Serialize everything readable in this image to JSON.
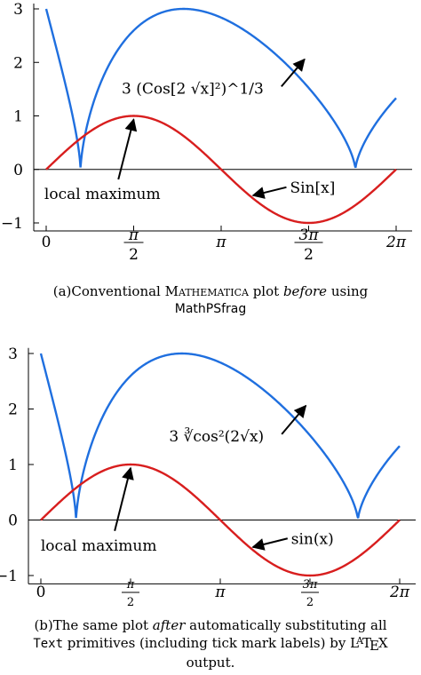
{
  "chart_data": [
    {
      "type": "line",
      "panel": "a",
      "x_range": [
        -0.3,
        6.55
      ],
      "ylim": [
        -1.15,
        3.1
      ],
      "grid": false,
      "x_tick_labels": [
        {
          "x": 0,
          "label": "0"
        },
        {
          "x": 1.5708,
          "label": "π/2"
        },
        {
          "x": 3.1416,
          "label": "π"
        },
        {
          "x": 4.7124,
          "label": "3π/2"
        },
        {
          "x": 6.2832,
          "label": "2π"
        }
      ],
      "y_tick_labels": [
        {
          "y": 3,
          "label": "3"
        },
        {
          "y": 2,
          "label": "2"
        },
        {
          "y": 1,
          "label": "1"
        },
        {
          "y": 0,
          "label": "0"
        },
        {
          "y": -1,
          "label": "−1"
        }
      ],
      "series": [
        {
          "name": "3 (Cos[2 √x]²)^1/3",
          "color": "#1f6fdf",
          "x": [
            0.0,
            0.2,
            0.4,
            0.6,
            0.62,
            0.8,
            1.0,
            1.5,
            2.0,
            2.5,
            2.47,
            3.0,
            3.5,
            4.0,
            4.5,
            5.0,
            5.4,
            5.55,
            5.7,
            6.0,
            6.28
          ],
          "y": [
            3.0,
            2.24,
            1.48,
            0.45,
            0.1,
            1.15,
            1.65,
            2.33,
            2.74,
            2.95,
            2.96,
            2.94,
            2.77,
            2.44,
            1.91,
            1.1,
            0.3,
            0.05,
            0.55,
            1.0,
            1.3
          ]
        },
        {
          "name": "Sin[x]",
          "color": "#d81e1e",
          "x": [
            0.0,
            0.5,
            1.0,
            1.5708,
            2.0,
            2.5,
            3.1416,
            3.5,
            4.0,
            4.7124,
            5.0,
            5.5,
            6.2832
          ],
          "y": [
            0.0,
            0.479,
            0.841,
            1.0,
            0.909,
            0.598,
            0.0,
            -0.351,
            -0.757,
            -1.0,
            -0.959,
            -0.706,
            0.0
          ]
        }
      ],
      "annotations": [
        {
          "text": "local maximum",
          "from": [
            1.2,
            -0.42
          ],
          "to": [
            1.5708,
            1.0
          ]
        },
        {
          "text": "Sin[x]",
          "from": [
            4.6,
            -0.3
          ],
          "to": [
            3.65,
            -0.52
          ]
        },
        {
          "text": "3 (Cos[2 √x]²)^1/3",
          "from": [
            4.0,
            1.45
          ],
          "to": [
            4.67,
            2.09
          ]
        }
      ]
    },
    {
      "type": "line",
      "panel": "b",
      "x_range": [
        -0.3,
        6.55
      ],
      "ylim": [
        -1.15,
        3.1
      ],
      "grid": false,
      "x_tick_labels": [
        {
          "x": 0,
          "label": "0"
        },
        {
          "x": 1.5708,
          "label": "π/2"
        },
        {
          "x": 3.1416,
          "label": "π"
        },
        {
          "x": 4.7124,
          "label": "3π/2"
        },
        {
          "x": 6.2832,
          "label": "2π"
        }
      ],
      "y_tick_labels": [
        {
          "y": 3,
          "label": "3"
        },
        {
          "y": 2,
          "label": "2"
        },
        {
          "y": 1,
          "label": "1"
        },
        {
          "y": 0,
          "label": "0"
        },
        {
          "y": -1,
          "label": "−1"
        }
      ],
      "series": [
        {
          "name": "3 ∛cos²(2√x)",
          "color": "#1f6fdf",
          "x": [
            0.0,
            0.2,
            0.4,
            0.6,
            0.62,
            0.8,
            1.0,
            1.5,
            2.0,
            2.5,
            2.47,
            3.0,
            3.5,
            4.0,
            4.5,
            5.0,
            5.4,
            5.55,
            5.7,
            6.0,
            6.28
          ],
          "y": [
            3.0,
            2.24,
            1.48,
            0.45,
            0.1,
            1.15,
            1.65,
            2.33,
            2.74,
            2.95,
            2.96,
            2.94,
            2.77,
            2.44,
            1.91,
            1.1,
            0.3,
            0.05,
            0.55,
            1.0,
            1.3
          ]
        },
        {
          "name": "sin(x)",
          "color": "#d81e1e",
          "x": [
            0.0,
            0.5,
            1.0,
            1.5708,
            2.0,
            2.5,
            3.1416,
            3.5,
            4.0,
            4.7124,
            5.0,
            5.5,
            6.2832
          ],
          "y": [
            0.0,
            0.479,
            0.841,
            1.0,
            0.909,
            0.598,
            0.0,
            -0.351,
            -0.757,
            -1.0,
            -0.959,
            -0.706,
            0.0
          ]
        }
      ],
      "annotations": [
        {
          "text": "local maximum",
          "from": [
            1.2,
            -0.42
          ],
          "to": [
            1.5708,
            1.0
          ]
        },
        {
          "text": "sin(x)",
          "from": [
            4.6,
            -0.3
          ],
          "to": [
            3.65,
            -0.52
          ]
        },
        {
          "text": "3 ∛cos²(2√x)",
          "from": [
            4.0,
            1.45
          ],
          "to": [
            4.67,
            2.09
          ]
        }
      ]
    }
  ],
  "captions": {
    "a": {
      "prefix": "(a)Conventional ",
      "product": "Mathematica",
      "middle": " plot ",
      "emph": "before",
      "suffix": " using",
      "line2": "MathPSfrag"
    },
    "b": {
      "prefix": "(b)The same plot ",
      "emph": "after",
      "suffix": " automatically substituting all",
      "line2_code": "Text",
      "line2_rest": " primitives (including tick mark labels) by ",
      "latex": "LATEX",
      "line3": "output."
    }
  }
}
